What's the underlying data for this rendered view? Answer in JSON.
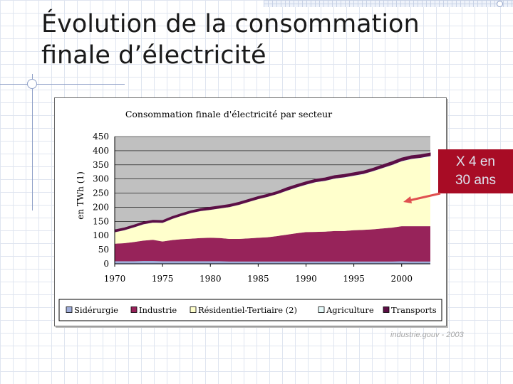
{
  "slide": {
    "title_lines": [
      "Évolution de la consommation",
      "finale d’électricité"
    ],
    "annotation_lines": [
      "X 4 en",
      "30 ans"
    ],
    "source": "industrie.gouv - 2003"
  },
  "colors": {
    "plot_bg": "#c0c0c0",
    "siderurgie": "#9fadd9",
    "industrie": "#97235a",
    "residentiel": "#ffffcc",
    "agriculture": "#e6fafa",
    "transports": "#5c0f45",
    "annotation_bg": "#a80c25",
    "arrow": "#e05050"
  },
  "chart_data": {
    "type": "area",
    "stacked": true,
    "title": "Consommation finale d'électricité par secteur",
    "ylabel": "en TWh (1)",
    "xlabel": "",
    "x": [
      1970,
      1971,
      1972,
      1973,
      1974,
      1975,
      1976,
      1977,
      1978,
      1979,
      1980,
      1981,
      1982,
      1983,
      1984,
      1985,
      1986,
      1987,
      1988,
      1989,
      1990,
      1991,
      1992,
      1993,
      1994,
      1995,
      1996,
      1997,
      1998,
      1999,
      2000,
      2001,
      2002,
      2003
    ],
    "xlim": [
      1970,
      2003
    ],
    "x_ticks": [
      "1970",
      "1975",
      "1980",
      "1985",
      "1990",
      "1995",
      "2000"
    ],
    "ylim": [
      0,
      450
    ],
    "y_ticks": [
      "450",
      "400",
      "350",
      "300",
      "250",
      "200",
      "150",
      "100",
      "50",
      "0"
    ],
    "grid": "horizontal",
    "series": [
      {
        "name": "Sidérurgie",
        "color": "#9fadd9",
        "values": [
          9,
          9,
          9,
          10,
          10,
          9,
          9,
          9,
          9,
          9,
          9,
          9,
          8,
          8,
          8,
          8,
          8,
          8,
          8,
          8,
          8,
          8,
          8,
          8,
          8,
          8,
          8,
          8,
          8,
          8,
          9,
          8,
          8,
          8
        ]
      },
      {
        "name": "Industrie",
        "color": "#97235a",
        "values": [
          62,
          64,
          68,
          72,
          75,
          70,
          75,
          78,
          80,
          82,
          83,
          82,
          80,
          80,
          82,
          84,
          86,
          90,
          95,
          100,
          104,
          105,
          106,
          108,
          108,
          111,
          112,
          114,
          117,
          120,
          124,
          125,
          125,
          125
        ]
      },
      {
        "name": "Résidentiel-Tertiaire (2)",
        "color": "#ffffcc",
        "values": [
          40,
          45,
          51,
          57,
          60,
          65,
          74,
          82,
          90,
          95,
          98,
          104,
          112,
          120,
          128,
          136,
          142,
          148,
          154,
          160,
          166,
          174,
          178,
          184,
          188,
          191,
          196,
          204,
          212,
          220,
          228,
          236,
          240,
          246
        ]
      },
      {
        "name": "Agriculture",
        "color": "#e6fafa",
        "values": [
          2,
          2,
          2,
          2,
          2,
          2,
          2,
          2,
          2,
          2,
          2,
          2,
          2,
          2,
          2,
          2,
          2,
          2,
          3,
          3,
          3,
          3,
          3,
          3,
          3,
          3,
          3,
          3,
          3,
          3,
          3,
          3,
          3,
          3
        ]
      },
      {
        "name": "Transports",
        "color": "#5c0f45",
        "values": [
          7,
          7,
          7,
          7,
          7,
          7,
          7,
          7,
          7,
          7,
          8,
          8,
          8,
          8,
          8,
          8,
          8,
          8,
          9,
          9,
          9,
          9,
          9,
          9,
          9,
          9,
          9,
          9,
          10,
          10,
          10,
          10,
          10,
          10
        ]
      }
    ],
    "legend": [
      "Sidérurgie",
      "Industrie",
      "Résidentiel-Tertiaire (2)",
      "Agriculture",
      "Transports"
    ],
    "legend_position": "bottom"
  }
}
